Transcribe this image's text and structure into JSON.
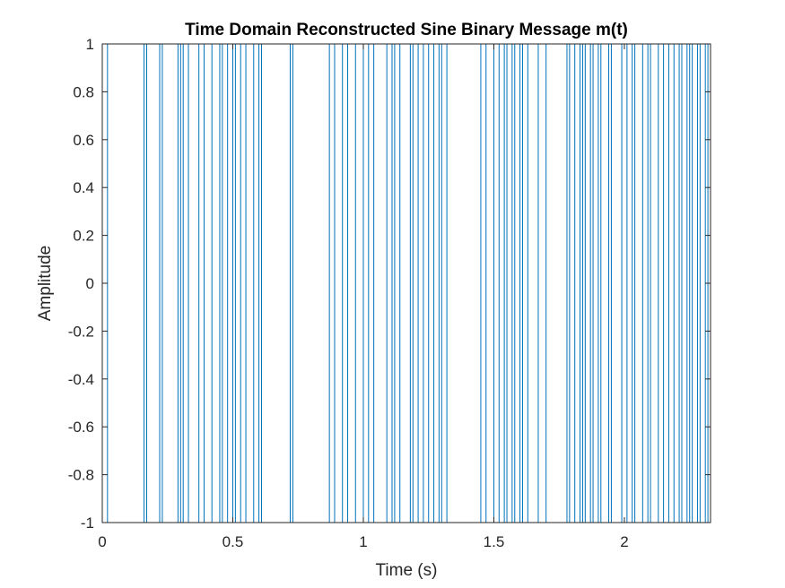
{
  "chart_data": {
    "type": "line",
    "step": true,
    "title": "Time Domain Reconstructed Sine Binary Message m(t)",
    "xlabel": "Time (s)",
    "ylabel": "Amplitude",
    "xlim": [
      0,
      2.33
    ],
    "ylim": [
      -1,
      1
    ],
    "x_ticks": [
      0,
      0.5,
      1,
      1.5,
      2
    ],
    "x_tick_labels": [
      "0",
      "0.5",
      "1",
      "1.5",
      "2"
    ],
    "y_ticks": [
      -1,
      -0.8,
      -0.6,
      -0.4,
      -0.2,
      0,
      0.2,
      0.4,
      0.6,
      0.8,
      1
    ],
    "y_tick_labels": [
      "-1",
      "-0.8",
      "-0.6",
      "-0.4",
      "-0.2",
      "0",
      "0.2",
      "0.4",
      "0.6",
      "0.8",
      "1"
    ],
    "grid": false,
    "line_color": "#0072BD",
    "series": [
      {
        "initial_level": 1,
        "transitions": [
          0.02,
          0.16,
          0.17,
          0.22,
          0.23,
          0.29,
          0.3,
          0.31,
          0.33,
          0.37,
          0.39,
          0.42,
          0.45,
          0.46,
          0.48,
          0.5,
          0.51,
          0.53,
          0.55,
          0.58,
          0.6,
          0.61,
          0.72,
          0.73,
          0.87,
          0.89,
          0.92,
          0.94,
          0.97,
          1.0,
          1.02,
          1.04,
          1.09,
          1.11,
          1.12,
          1.14,
          1.18,
          1.19,
          1.21,
          1.23,
          1.25,
          1.27,
          1.29,
          1.3,
          1.32,
          1.45,
          1.47,
          1.5,
          1.52,
          1.54,
          1.55,
          1.57,
          1.58,
          1.6,
          1.61,
          1.63,
          1.67,
          1.7,
          1.78,
          1.79,
          1.81,
          1.83,
          1.84,
          1.85,
          1.87,
          1.88,
          1.9,
          1.91,
          1.94,
          1.95,
          1.99,
          2.01,
          2.03,
          2.04,
          2.07,
          2.09,
          2.1,
          2.13,
          2.15,
          2.17,
          2.19,
          2.21,
          2.22,
          2.24,
          2.25,
          2.26,
          2.28,
          2.29,
          2.31,
          2.32
        ],
        "final_x": 2.33
      }
    ]
  }
}
